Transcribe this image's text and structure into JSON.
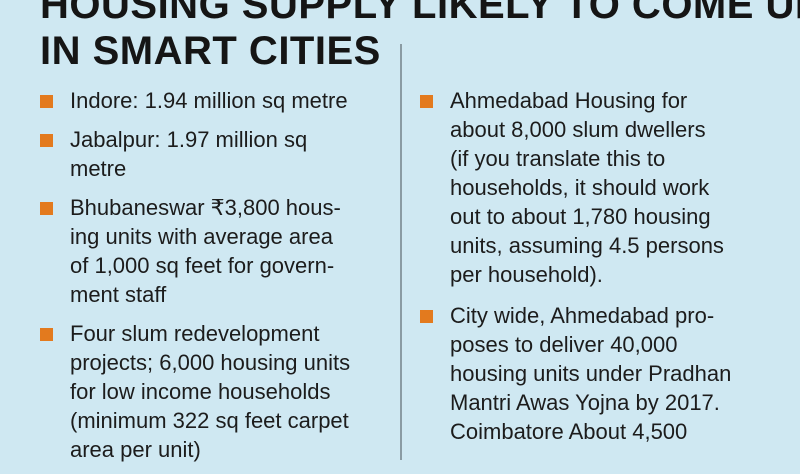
{
  "headline": {
    "line1": "HOUSING SUPPLY LIKELY TO COME UP",
    "line2": "IN SMART CITIES"
  },
  "colors": {
    "background": "#cfe8f2",
    "bullet": "#e37a1e",
    "text": "#1c1c1c"
  },
  "left_column": {
    "items": [
      {
        "lines": [
          "Indore: 1.94 million sq metre"
        ]
      },
      {
        "lines": [
          "Jabalpur: 1.97 million sq",
          "metre"
        ]
      },
      {
        "lines": [
          "Bhubaneswar ₹3,800 hous-",
          "ing units with average area",
          "of 1,000 sq feet for govern-",
          "ment staff"
        ]
      },
      {
        "lines": [
          "Four slum redevelopment",
          "projects; 6,000 housing units",
          "for low income households",
          "(minimum 322 sq feet carpet",
          "area per unit)"
        ]
      }
    ]
  },
  "right_column": {
    "items": [
      {
        "lines": [
          "Ahmedabad Housing for",
          "about 8,000 slum dwellers",
          "(if you translate this to",
          "households, it should work",
          "out to about 1,780 housing",
          "units, assuming 4.5 persons",
          "per household)."
        ]
      },
      {
        "lines": [
          "City wide, Ahmedabad pro-",
          "poses to deliver 40,000",
          "housing units under Pradhan",
          "Mantri Awas Yojna by 2017.",
          "Coimbatore About 4,500"
        ]
      }
    ]
  }
}
